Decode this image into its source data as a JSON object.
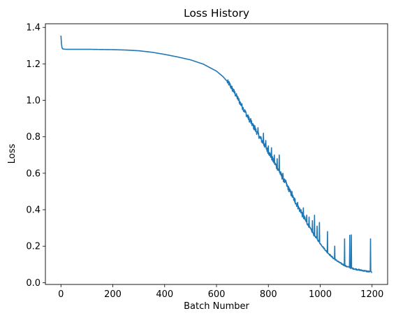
{
  "chart_data": {
    "type": "line",
    "title": "Loss History",
    "xlabel": "Batch Number",
    "ylabel": "Loss",
    "xlim": [
      -60,
      1260
    ],
    "ylim": [
      -0.01,
      1.42
    ],
    "grid": false,
    "x_ticks": [
      0,
      200,
      400,
      600,
      800,
      1000,
      1200
    ],
    "y_ticks": [
      0.0,
      0.2,
      0.4,
      0.6,
      0.8,
      1.0,
      1.2,
      1.4
    ],
    "series": [
      {
        "color": "#1f77b4",
        "x": [
          0,
          2,
          4,
          6,
          10,
          20,
          50,
          100,
          150,
          200,
          250,
          300,
          350,
          400,
          450,
          500,
          550,
          600,
          625,
          650,
          675,
          700,
          725,
          750,
          775,
          800,
          825,
          850,
          875,
          900,
          925,
          950,
          975,
          1000,
          1025,
          1050,
          1075,
          1100,
          1125,
          1150,
          1175,
          1190,
          1200
        ],
        "y": [
          1.355,
          1.31,
          1.29,
          1.283,
          1.281,
          1.28,
          1.28,
          1.28,
          1.279,
          1.278,
          1.276,
          1.272,
          1.264,
          1.252,
          1.238,
          1.222,
          1.198,
          1.16,
          1.13,
          1.09,
          1.03,
          0.965,
          0.9,
          0.84,
          0.78,
          0.72,
          0.655,
          0.59,
          0.525,
          0.455,
          0.39,
          0.325,
          0.265,
          0.215,
          0.17,
          0.135,
          0.11,
          0.09,
          0.078,
          0.07,
          0.064,
          0.06,
          0.058
        ]
      }
    ],
    "spikes": [
      [
        716,
        0.92
      ],
      [
        732,
        0.9
      ],
      [
        748,
        0.86
      ],
      [
        760,
        0.85
      ],
      [
        771,
        0.8
      ],
      [
        781,
        0.82
      ],
      [
        790,
        0.78
      ],
      [
        800,
        0.75
      ],
      [
        812,
        0.74
      ],
      [
        823,
        0.7
      ],
      [
        834,
        0.68
      ],
      [
        842,
        0.7
      ],
      [
        856,
        0.6
      ],
      [
        868,
        0.56
      ],
      [
        880,
        0.52
      ],
      [
        891,
        0.5
      ],
      [
        903,
        0.46
      ],
      [
        913,
        0.44
      ],
      [
        926,
        0.4
      ],
      [
        935,
        0.41
      ],
      [
        948,
        0.37
      ],
      [
        957,
        0.36
      ],
      [
        970,
        0.34
      ],
      [
        978,
        0.37
      ],
      [
        988,
        0.31
      ],
      [
        997,
        0.33
      ],
      [
        1028,
        0.28
      ],
      [
        1056,
        0.2
      ],
      [
        1094,
        0.24
      ],
      [
        1114,
        0.26
      ],
      [
        1120,
        0.262
      ],
      [
        1194,
        0.24
      ]
    ]
  }
}
